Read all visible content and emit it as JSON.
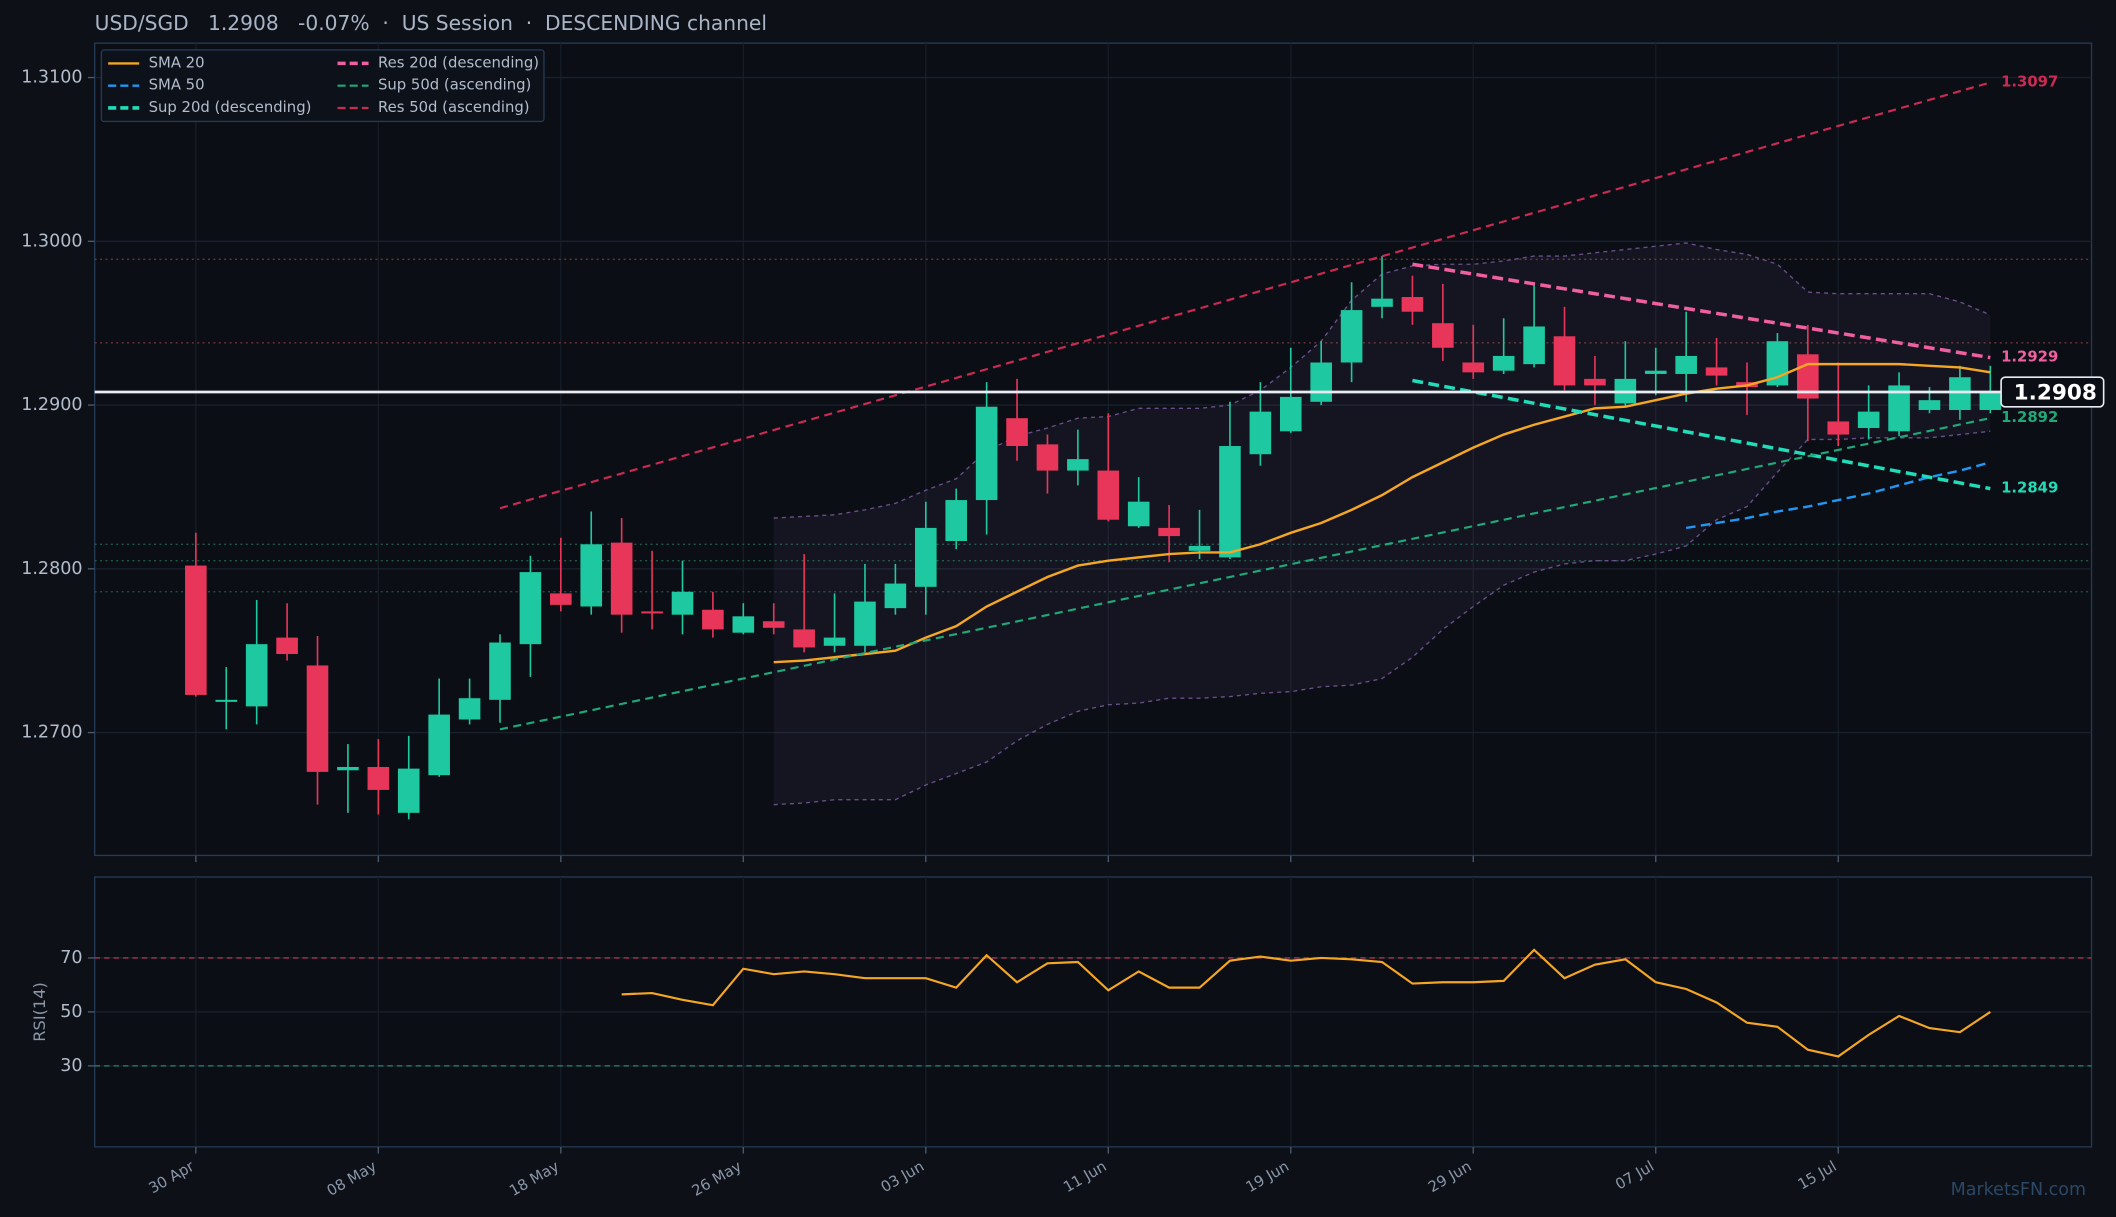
{
  "chart_data": [
    {
      "type": "candlestick",
      "title": "USD/SGD   1.2908   -0.07%  ·  US Session  ·  DESCENDING channel",
      "categories": [
        "30 Apr",
        null,
        null,
        null,
        null,
        null,
        "08 May",
        null,
        null,
        null,
        null,
        null,
        "18 May",
        null,
        null,
        null,
        null,
        null,
        "26 May",
        null,
        null,
        null,
        null,
        null,
        "03 Jun",
        null,
        null,
        null,
        null,
        null,
        "11 Jun",
        null,
        null,
        null,
        null,
        null,
        "19 Jun",
        null,
        null,
        null,
        null,
        null,
        "29 Jun",
        null,
        null,
        null,
        null,
        null,
        "07 Jul",
        null,
        null,
        null,
        null,
        null,
        "15 Jul",
        null,
        null,
        null,
        null,
        null
      ],
      "open": [
        1.2802,
        1.2719,
        1.2716,
        1.2758,
        1.2741,
        1.2677,
        1.2679,
        1.2651,
        1.2674,
        1.2708,
        1.272,
        1.2754,
        1.2785,
        1.2777,
        1.2816,
        1.2774,
        1.2772,
        1.2775,
        1.2761,
        1.2768,
        1.2763,
        1.2753,
        1.2753,
        1.2776,
        1.2789,
        1.2817,
        1.2842,
        1.2892,
        1.2876,
        1.286,
        1.286,
        1.2826,
        1.2825,
        1.2811,
        1.2807,
        1.287,
        1.2884,
        1.2902,
        1.2926,
        1.296,
        1.2966,
        1.295,
        1.2926,
        1.2921,
        1.2925,
        1.2942,
        1.2916,
        1.2901,
        1.2919,
        1.2919,
        1.2923,
        1.2914,
        1.2912,
        1.2931,
        1.289,
        1.2886,
        1.2884,
        1.2897,
        1.2897,
        1.2897
      ],
      "high": [
        1.2822,
        1.274,
        1.2781,
        1.2779,
        1.2759,
        1.2693,
        1.2696,
        1.2698,
        1.2733,
        1.2733,
        1.276,
        1.2808,
        1.2819,
        1.2835,
        1.2831,
        1.2811,
        1.2805,
        1.2786,
        1.2779,
        1.2779,
        1.2809,
        1.2785,
        1.2803,
        1.2803,
        1.2841,
        1.2849,
        1.2914,
        1.2916,
        1.2882,
        1.2885,
        1.2895,
        1.2856,
        1.2839,
        1.2836,
        1.2902,
        1.2914,
        1.2935,
        1.2939,
        1.2975,
        1.2991,
        1.2979,
        1.2974,
        1.2949,
        1.2953,
        1.2974,
        1.296,
        1.293,
        1.2939,
        1.2935,
        1.2957,
        1.2941,
        1.2926,
        1.2944,
        1.2949,
        1.2926,
        1.2912,
        1.292,
        1.2911,
        1.2924,
        1.2924
      ],
      "low": [
        1.2722,
        1.2702,
        1.2705,
        1.2744,
        1.2656,
        1.2651,
        1.265,
        1.2647,
        1.2673,
        1.2705,
        1.2706,
        1.2734,
        1.2774,
        1.2772,
        1.2761,
        1.2763,
        1.276,
        1.2758,
        1.276,
        1.276,
        1.2749,
        1.2749,
        1.2749,
        1.2772,
        1.2772,
        1.2812,
        1.2821,
        1.2866,
        1.2846,
        1.2851,
        1.2829,
        1.2825,
        1.2804,
        1.2806,
        1.2806,
        1.2863,
        1.2883,
        1.29,
        1.2914,
        1.2953,
        1.2949,
        1.2927,
        1.2916,
        1.2919,
        1.2923,
        1.2909,
        1.29,
        1.2899,
        1.2906,
        1.2902,
        1.2912,
        1.2894,
        1.2911,
        1.2878,
        1.2875,
        1.2879,
        1.2881,
        1.2895,
        1.2891,
        1.2895
      ],
      "close": [
        1.2723,
        1.272,
        1.2754,
        1.2748,
        1.2676,
        1.2679,
        1.2665,
        1.2678,
        1.2711,
        1.2721,
        1.2755,
        1.2798,
        1.2778,
        1.2815,
        1.2772,
        1.2773,
        1.2786,
        1.2763,
        1.2771,
        1.2764,
        1.2752,
        1.2758,
        1.278,
        1.2791,
        1.2825,
        1.2842,
        1.2899,
        1.2875,
        1.286,
        1.2867,
        1.283,
        1.2841,
        1.282,
        1.2814,
        1.2875,
        1.2896,
        1.2905,
        1.2926,
        1.2958,
        1.2965,
        1.2957,
        1.2935,
        1.292,
        1.293,
        1.2948,
        1.2912,
        1.2912,
        1.2916,
        1.2921,
        1.293,
        1.2918,
        1.2911,
        1.2939,
        1.2904,
        1.2882,
        1.2896,
        1.2912,
        1.2903,
        1.2917,
        1.2908
      ],
      "up_color": "#1ec8a0",
      "down_color": "#e8365a",
      "ylim": [
        1.2625,
        1.3121
      ],
      "yticks": [
        {
          "value": 1.27,
          "label": "1.2700"
        },
        {
          "value": 1.28,
          "label": "1.2800"
        },
        {
          "value": 1.29,
          "label": "1.2900"
        },
        {
          "value": 1.3,
          "label": "1.3000"
        },
        {
          "value": 1.31,
          "label": "1.3100"
        }
      ],
      "grid": true,
      "series": [
        {
          "name": "SMA 20",
          "color": "#f5a623",
          "dash": false,
          "values": [
            null,
            null,
            null,
            null,
            null,
            null,
            null,
            null,
            null,
            null,
            null,
            null,
            null,
            null,
            null,
            null,
            null,
            null,
            null,
            1.2743,
            1.2744,
            1.2746,
            1.2748,
            1.275,
            1.2758,
            1.2765,
            1.2777,
            1.2786,
            1.2795,
            1.2802,
            1.2805,
            1.2807,
            1.2809,
            1.281,
            1.281,
            1.2815,
            1.2822,
            1.2828,
            1.2836,
            1.2845,
            1.2856,
            1.2865,
            1.2874,
            1.2882,
            1.2888,
            1.2893,
            1.2898,
            1.2899,
            1.2903,
            1.2907,
            1.291,
            1.2912,
            1.2917,
            1.2925,
            1.2925,
            1.2925,
            1.2925,
            1.2924,
            1.2923,
            1.292
          ]
        },
        {
          "name": "SMA 50",
          "color": "#2196f3",
          "dash": true,
          "values": [
            null,
            null,
            null,
            null,
            null,
            null,
            null,
            null,
            null,
            null,
            null,
            null,
            null,
            null,
            null,
            null,
            null,
            null,
            null,
            null,
            null,
            null,
            null,
            null,
            null,
            null,
            null,
            null,
            null,
            null,
            null,
            null,
            null,
            null,
            null,
            null,
            null,
            null,
            null,
            null,
            null,
            null,
            null,
            null,
            null,
            null,
            null,
            null,
            null,
            1.2825,
            1.2828,
            1.2831,
            1.2835,
            1.2838,
            1.2842,
            1.2846,
            1.2851,
            1.2856,
            1.286,
            1.2865
          ]
        }
      ],
      "trendlines": [
        {
          "name": "Sup 20d (descending)",
          "color": "#20dcb8",
          "width": 2.6,
          "x": [
            40,
            59
          ],
          "values": [
            1.2915,
            1.2849
          ]
        },
        {
          "name": "Res 20d (descending)",
          "color": "#f060a0",
          "width": 2.6,
          "x": [
            40,
            59
          ],
          "values": [
            1.2986,
            1.2929
          ]
        },
        {
          "name": "Sup 50d (ascending)",
          "color": "#1fa878",
          "width": 1.6,
          "x": [
            10,
            59
          ],
          "values": [
            1.2702,
            1.2892
          ]
        },
        {
          "name": "Res 50d (ascending)",
          "color": "#cc2a52",
          "width": 1.6,
          "x": [
            10,
            59
          ],
          "values": [
            1.2837,
            1.3097
          ]
        }
      ],
      "bands": {
        "color": "#6a4f8c",
        "upper": [
          null,
          null,
          null,
          null,
          null,
          null,
          null,
          null,
          null,
          null,
          null,
          null,
          null,
          null,
          null,
          null,
          null,
          null,
          null,
          1.2831,
          1.2832,
          1.2833,
          1.2836,
          1.284,
          1.2848,
          1.2855,
          1.2872,
          1.2881,
          1.2886,
          1.2892,
          1.2893,
          1.2898,
          1.2898,
          1.2898,
          1.29,
          1.2909,
          1.2923,
          1.2939,
          1.2964,
          1.298,
          1.2985,
          1.2986,
          1.2986,
          1.2988,
          1.2991,
          1.2991,
          1.2993,
          1.2995,
          1.2997,
          1.2999,
          1.2995,
          1.2992,
          1.2986,
          1.2969,
          1.2968,
          1.2968,
          1.2968,
          1.2968,
          1.2963,
          1.2955
        ],
        "lower": [
          null,
          null,
          null,
          null,
          null,
          null,
          null,
          null,
          null,
          null,
          null,
          null,
          null,
          null,
          null,
          null,
          null,
          null,
          null,
          1.2656,
          1.2657,
          1.2659,
          1.2659,
          1.2659,
          1.2668,
          1.2675,
          1.2682,
          1.2695,
          1.2705,
          1.2713,
          1.2717,
          1.2718,
          1.2721,
          1.2721,
          1.2722,
          1.2724,
          1.2725,
          1.2728,
          1.2729,
          1.2733,
          1.2746,
          1.2763,
          1.2777,
          1.279,
          1.2798,
          1.2803,
          1.2805,
          1.2805,
          1.2809,
          1.2814,
          1.283,
          1.2838,
          1.2859,
          1.2879,
          1.2879,
          1.288,
          1.288,
          1.288,
          1.2882,
          1.2884
        ]
      },
      "levels": [
        {
          "value": 1.2989,
          "color": "#6e3434"
        },
        {
          "value": 1.2938,
          "color": "#6e3434"
        },
        {
          "value": 1.2815,
          "color": "#1f5a48"
        },
        {
          "value": 1.2805,
          "color": "#1f5a48"
        },
        {
          "value": 1.2786,
          "color": "#1f5a48"
        }
      ],
      "last_price": 1.2908,
      "legend": "upper left"
    },
    {
      "type": "line",
      "ylabel": "RSI(14)",
      "color": "#f5a623",
      "values": [
        null,
        null,
        null,
        null,
        null,
        null,
        null,
        null,
        null,
        null,
        null,
        null,
        null,
        null,
        56.5,
        57,
        54.5,
        52.5,
        66,
        64,
        65,
        64,
        62.5,
        62.5,
        62.5,
        59,
        71,
        61,
        68,
        68.5,
        58,
        65,
        59,
        59,
        69,
        70.5,
        69,
        70,
        69.5,
        68.5,
        60.5,
        61,
        61,
        61.5,
        73,
        62.5,
        67.5,
        69.5,
        61,
        58.5,
        53.5,
        46,
        44.5,
        36,
        33.5,
        41.5,
        48.5,
        44,
        42.5,
        50
      ],
      "ylim": [
        0,
        100
      ],
      "yticks": [
        30,
        50,
        70
      ],
      "reference_lines": [
        {
          "value": 70,
          "color": "#a8374e"
        },
        {
          "value": 30,
          "color": "#1f8a78"
        }
      ],
      "grid": true
    }
  ],
  "watermark": "MarketsFN.com"
}
